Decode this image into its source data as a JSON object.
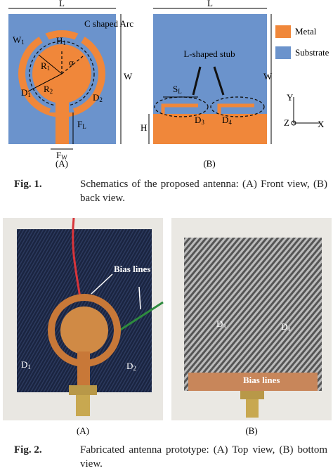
{
  "fig1": {
    "panel_a": {
      "length": "L",
      "width": "W",
      "w1": {
        "main": "W",
        "sub": "1"
      },
      "h1": {
        "main": "H",
        "sub": "1"
      },
      "arc": "C shaped Arc",
      "r1": {
        "main": "R",
        "sub": "1"
      },
      "alpha": "α",
      "r2": {
        "main": "R",
        "sub": "2"
      },
      "d1": {
        "main": "D",
        "sub": "1"
      },
      "d2": {
        "main": "D",
        "sub": "2"
      },
      "fl": {
        "main": "F",
        "sub": "L"
      },
      "fw": {
        "main": "F",
        "sub": "W"
      },
      "tag": "(A)"
    },
    "panel_b": {
      "length": "L",
      "width": "W",
      "height": "H",
      "sl": {
        "main": "S",
        "sub": "L"
      },
      "d3": {
        "main": "D",
        "sub": "3"
      },
      "d4": {
        "main": "D",
        "sub": "4"
      },
      "stub": "L-shaped stub",
      "y": "Y",
      "z": "Z",
      "x": "X",
      "tag": "(B)"
    },
    "legend": {
      "metal": "Metal",
      "substrate": "Substrate"
    },
    "caption": {
      "label": "Fig. 1.",
      "text": "Schematics of the proposed antenna: (A) Front view, (B) back view."
    }
  },
  "fig2": {
    "panel_a": {
      "bias": "Bias lines",
      "d1": {
        "main": "D",
        "sub": "1"
      },
      "d2": {
        "main": "D",
        "sub": "2"
      },
      "tag": "(A)"
    },
    "panel_b": {
      "d3": {
        "main": "D",
        "sub": "3"
      },
      "d4": {
        "main": "D",
        "sub": "4"
      },
      "bias": "Bias lines",
      "tag": "(B)"
    },
    "caption": {
      "label": "Fig. 2.",
      "text": "Fabricated antenna prototype: (A) Top view, (B) bottom view."
    }
  }
}
